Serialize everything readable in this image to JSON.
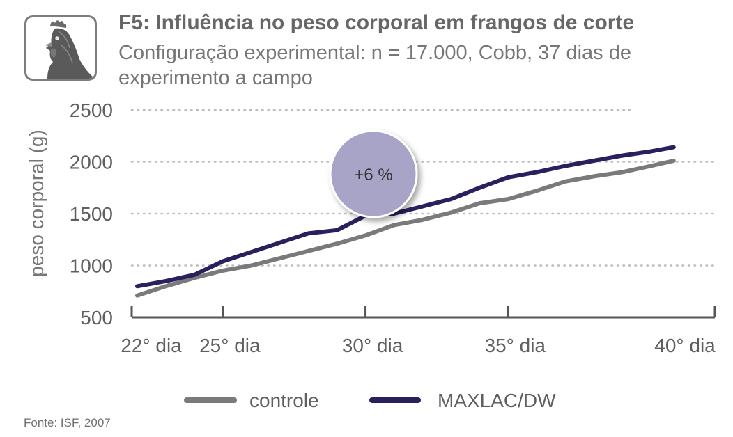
{
  "header": {
    "icon": "chicken-head-icon",
    "title": "F5: Influência no peso corporal em frangos de corte",
    "subtitle": "Configuração experimental: n = 17.000, Cobb, 37 dias de experimento a campo"
  },
  "source": "Fonte: ISF, 2007",
  "annotation": {
    "label": "+6 %",
    "color": "#a8a4c8"
  },
  "colors": {
    "controle": "#7a7a7a",
    "maxlac": "#2b1f5e",
    "grid": "#bdbdbd",
    "axis": "#555555"
  },
  "chart_data": {
    "type": "line",
    "title": "F5: Influência no peso corporal em frangos de corte",
    "xlabel": "",
    "ylabel": "peso corporal (g)",
    "xlim": [
      22,
      41
    ],
    "ylim": [
      500,
      2500
    ],
    "yticks": [
      500,
      1000,
      1500,
      2000,
      2500
    ],
    "xticks": [
      22,
      25,
      30,
      35,
      40
    ],
    "xtick_labels": [
      "22° dia",
      "25° dia",
      "30° dia",
      "35° dia",
      "40° dia"
    ],
    "grid": true,
    "legend": "bottom",
    "series": [
      {
        "name": "controle",
        "x": [
          22,
          23,
          24,
          25,
          26,
          27,
          28,
          29,
          30,
          31,
          32,
          33,
          34,
          35,
          36,
          37,
          38,
          39,
          40,
          40.8
        ],
        "y": [
          710,
          800,
          880,
          950,
          1000,
          1070,
          1140,
          1210,
          1290,
          1390,
          1440,
          1510,
          1600,
          1640,
          1720,
          1810,
          1860,
          1900,
          1960,
          2010
        ]
      },
      {
        "name": "MAXLAC/DW",
        "x": [
          22,
          23,
          24,
          25,
          26,
          27,
          28,
          29,
          30,
          31,
          32,
          33,
          34,
          35,
          36,
          37,
          38,
          39,
          40,
          40.8
        ],
        "y": [
          800,
          850,
          910,
          1040,
          1130,
          1220,
          1310,
          1340,
          1480,
          1500,
          1570,
          1640,
          1750,
          1850,
          1900,
          1960,
          2010,
          2060,
          2100,
          2140
        ]
      }
    ]
  }
}
